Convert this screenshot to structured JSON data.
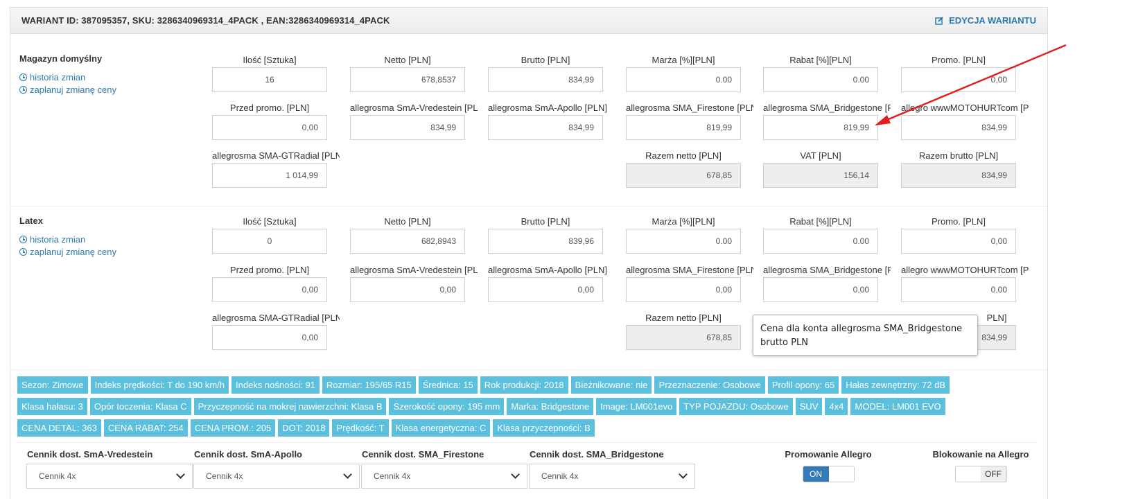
{
  "header": {
    "title": "WARIANT ID: 387095357, SKU: 3286340969314_4PACK , EAN:3286340969314_4PACK",
    "edit_label": "EDYCJA WARIANTU"
  },
  "labels": {
    "qty": "Ilość [Sztuka]",
    "net": "Netto [PLN]",
    "gross": "Brutto [PLN]",
    "margin": "Marża [%][PLN]",
    "discount": "Rabat [%][PLN]",
    "promo": "Promo. [PLN]",
    "before_promo": "Przed promo. [PLN]",
    "vredestein": "allegrosma SmA-Vredestein [PLN]",
    "apollo": "allegrosma SmA-Apollo [PLN]",
    "firestone": "allegrosma SMA_Firestone [PLN]",
    "bridgestone": "allegrosma SMA_Bridgestone [PLN]",
    "motohurt": "allegro wwwMOTOHURTcom [PLN]",
    "gtradial": "allegrosma SMA-GTRadial [PLN]",
    "total_net": "Razem netto [PLN]",
    "vat": "VAT [PLN]",
    "total_gross": "Razem brutto [PLN]"
  },
  "warehouses": [
    {
      "name": "Magazyn domyślny",
      "history_link": "historia zmian",
      "schedule_link": "zaplanuj zmianę ceny",
      "qty": "16",
      "net": "678,8537",
      "gross": "834,99",
      "margin": "0.00",
      "discount": "0.00",
      "promo": "0,00",
      "before_promo": "0,00",
      "vredestein": "834,99",
      "apollo": "834,99",
      "firestone": "819,99",
      "bridgestone": "819,99",
      "motohurt": "834,99",
      "gtradial": "1 014,99",
      "total_net": "678,85",
      "vat": "156,14",
      "total_gross": "834,99"
    },
    {
      "name": "Latex",
      "history_link": "historia zmian",
      "schedule_link": "zaplanuj zmianę ceny",
      "qty": "0",
      "net": "682,8943",
      "gross": "839,96",
      "margin": "0.00",
      "discount": "0.00",
      "promo": "0,00",
      "before_promo": "0,00",
      "vredestein": "0,00",
      "apollo": "0,00",
      "firestone": "0,00",
      "bridgestone": "0,00",
      "motohurt": "0,00",
      "gtradial": "0,00",
      "total_net": "678,85",
      "total_gross": "834,99",
      "total_gross_label_visible": "PLN]"
    }
  ],
  "tooltip": "Cena dla konta allegrosma SMA_Bridgestone brutto PLN",
  "tags": [
    [
      "Sezon: Zimowe",
      "Indeks prędkości: T do 190 km/h",
      "Indeks nośności: 91",
      "Rozmiar: 195/65 R15",
      "Średnica: 15",
      "Rok produkcji: 2018",
      "Bieżnikowane: nie",
      "Przeznaczenie: Osobowe",
      "Profil opony: 65",
      "Hałas zewnętrzny: 72 dB"
    ],
    [
      "Klasa hałasu: 3",
      "Opór toczenia: Klasa C",
      "Przyczepność na mokrej nawierzchni: Klasa B",
      "Szerokość opony: 195 mm",
      "Marka: Bridgestone",
      "Image: LM001evo",
      "TYP POJAZDU: Osobowe",
      "SUV",
      "4x4",
      "MODEL: LM001 EVO"
    ],
    [
      "CENA DETAL: 363",
      "CENA RABAT: 254",
      "CENA PROM.: 205",
      "DOT: 2018",
      "Prędkość: T",
      "Klasa energetyczna: C",
      "Klasa przyczepności: B"
    ]
  ],
  "price_lists": [
    {
      "label": "Cennik dost. SmA-Vredestein",
      "value": "Cennik 4x"
    },
    {
      "label": "Cennik dost. SmA-Apollo",
      "value": "Cennik 4x"
    },
    {
      "label": "Cennik dost. SMA_Firestone",
      "value": "Cennik 4x"
    },
    {
      "label": "Cennik dost. SMA_Bridgestone",
      "value": "Cennik 4x"
    }
  ],
  "toggles": {
    "promo": {
      "label": "Promowanie Allegro",
      "state": "ON"
    },
    "block": {
      "label": "Blokowanie na Allegro",
      "state": "OFF"
    }
  },
  "colors": {
    "tag_bg": "#5bc0de",
    "link": "#2a7ab0",
    "toggle_on": "#337ab7",
    "arrow": "#e02020"
  }
}
